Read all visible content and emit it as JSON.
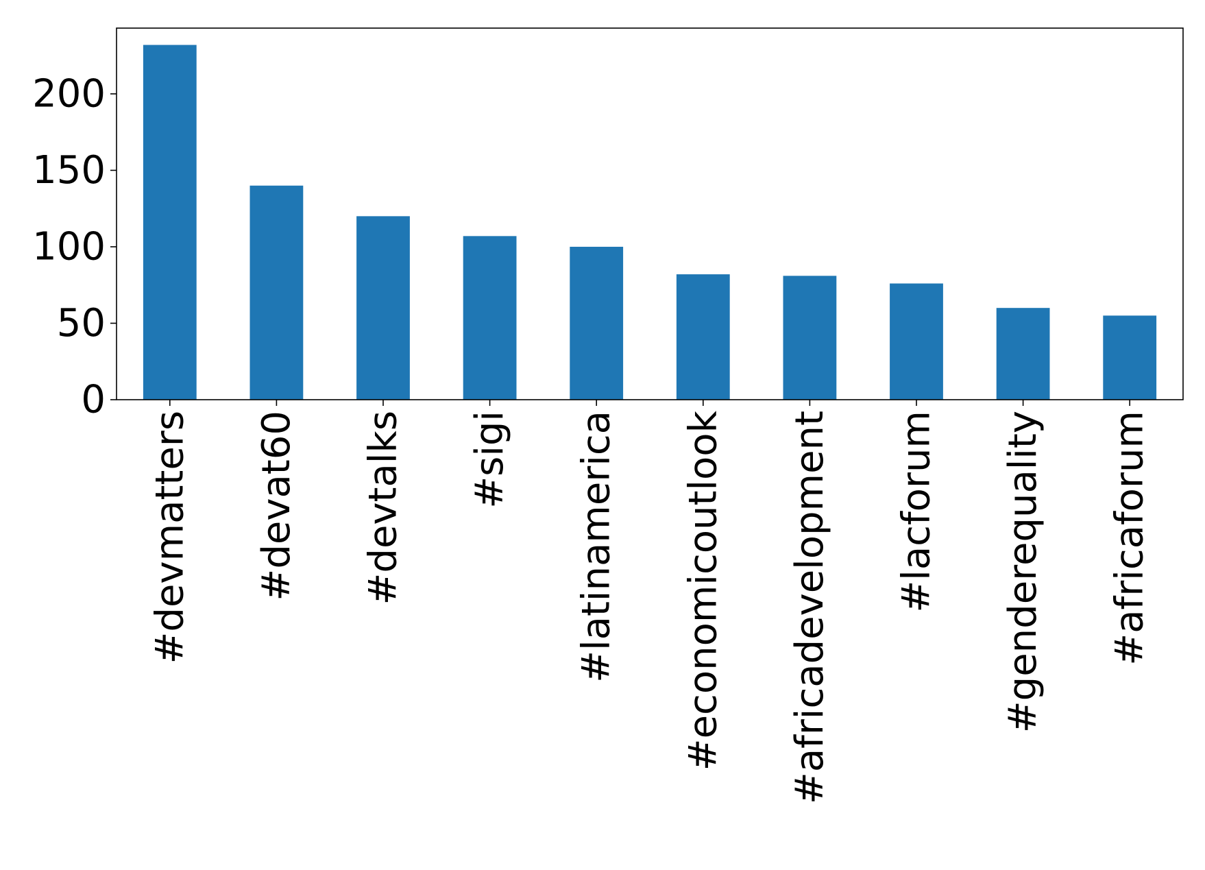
{
  "chart_data": {
    "type": "bar",
    "title": "",
    "xlabel": "",
    "ylabel": "",
    "categories": [
      "#devmatters",
      "#devat60",
      "#devtalks",
      "#sigi",
      "#latinamerica",
      "#economicoutlook",
      "#africadevelopment",
      "#lacforum",
      "#genderequality",
      "#africaforum"
    ],
    "values": [
      232,
      140,
      120,
      107,
      100,
      82,
      81,
      76,
      60,
      55
    ],
    "ylim": [
      0,
      243
    ],
    "yticks": [
      0,
      50,
      100,
      150,
      200
    ],
    "bar_color": "#1f77b4",
    "grid": false,
    "legend": "none"
  }
}
